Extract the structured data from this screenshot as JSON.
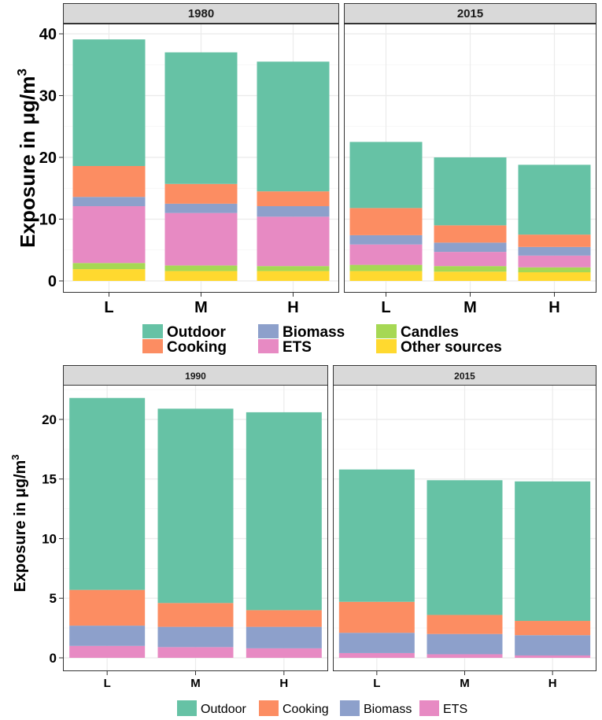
{
  "chart_data": [
    {
      "type": "bar",
      "stacked": true,
      "ylabel": "Exposure in μg/m",
      "ylabel_sup": "3",
      "ylim": [
        0,
        41
      ],
      "yticks": [
        0,
        10,
        20,
        30,
        40
      ],
      "grid": true,
      "categories": [
        "L",
        "M",
        "H"
      ],
      "panels": [
        {
          "title": "1980",
          "series": [
            {
              "name": "Other sources",
              "values": [
                1.9,
                1.6,
                1.6
              ]
            },
            {
              "name": "Candles",
              "values": [
                1.0,
                0.9,
                0.8
              ]
            },
            {
              "name": "ETS",
              "values": [
                9.2,
                8.5,
                8.0
              ]
            },
            {
              "name": "Biomass",
              "values": [
                1.5,
                1.5,
                1.7
              ]
            },
            {
              "name": "Cooking",
              "values": [
                5.0,
                3.2,
                2.4
              ]
            },
            {
              "name": "Outdoor",
              "values": [
                20.5,
                21.3,
                21.0
              ]
            }
          ]
        },
        {
          "title": "2015",
          "series": [
            {
              "name": "Other sources",
              "values": [
                1.6,
                1.5,
                1.4
              ]
            },
            {
              "name": "Candles",
              "values": [
                1.0,
                0.9,
                0.8
              ]
            },
            {
              "name": "ETS",
              "values": [
                3.3,
                2.3,
                1.9
              ]
            },
            {
              "name": "Biomass",
              "values": [
                1.5,
                1.5,
                1.4
              ]
            },
            {
              "name": "Cooking",
              "values": [
                4.4,
                2.8,
                2.0
              ]
            },
            {
              "name": "Outdoor",
              "values": [
                10.7,
                11.0,
                11.3
              ]
            }
          ]
        }
      ],
      "legend": [
        {
          "name": "Outdoor"
        },
        {
          "name": "Cooking"
        },
        {
          "name": "Biomass"
        },
        {
          "name": "ETS"
        },
        {
          "name": "Candles"
        },
        {
          "name": "Other sources"
        }
      ]
    },
    {
      "type": "bar",
      "stacked": true,
      "ylabel": "Exposure in μg/m",
      "ylabel_sup": "3",
      "ylim": [
        0,
        22.5
      ],
      "yticks": [
        0,
        5,
        10,
        15,
        20
      ],
      "grid": true,
      "categories": [
        "L",
        "M",
        "H"
      ],
      "panels": [
        {
          "title": "1990",
          "series": [
            {
              "name": "ETS",
              "values": [
                1.0,
                0.9,
                0.8
              ]
            },
            {
              "name": "Biomass",
              "values": [
                1.7,
                1.7,
                1.8
              ]
            },
            {
              "name": "Cooking",
              "values": [
                3.0,
                2.0,
                1.4
              ]
            },
            {
              "name": "Outdoor",
              "values": [
                16.1,
                16.3,
                16.6
              ]
            }
          ]
        },
        {
          "title": "2015",
          "series": [
            {
              "name": "ETS",
              "values": [
                0.4,
                0.3,
                0.2
              ]
            },
            {
              "name": "Biomass",
              "values": [
                1.7,
                1.7,
                1.7
              ]
            },
            {
              "name": "Cooking",
              "values": [
                2.6,
                1.6,
                1.2
              ]
            },
            {
              "name": "Outdoor",
              "values": [
                11.1,
                11.3,
                11.7
              ]
            }
          ]
        }
      ],
      "legend": [
        {
          "name": "Outdoor"
        },
        {
          "name": "Cooking"
        },
        {
          "name": "Biomass"
        },
        {
          "name": "ETS"
        }
      ]
    }
  ],
  "colors": {
    "Outdoor": "#66c2a5",
    "Cooking": "#fc8d62",
    "Biomass": "#8da0cb",
    "ETS": "#e78ac3",
    "Candles": "#a6d854",
    "Other sources": "#ffd92f"
  }
}
